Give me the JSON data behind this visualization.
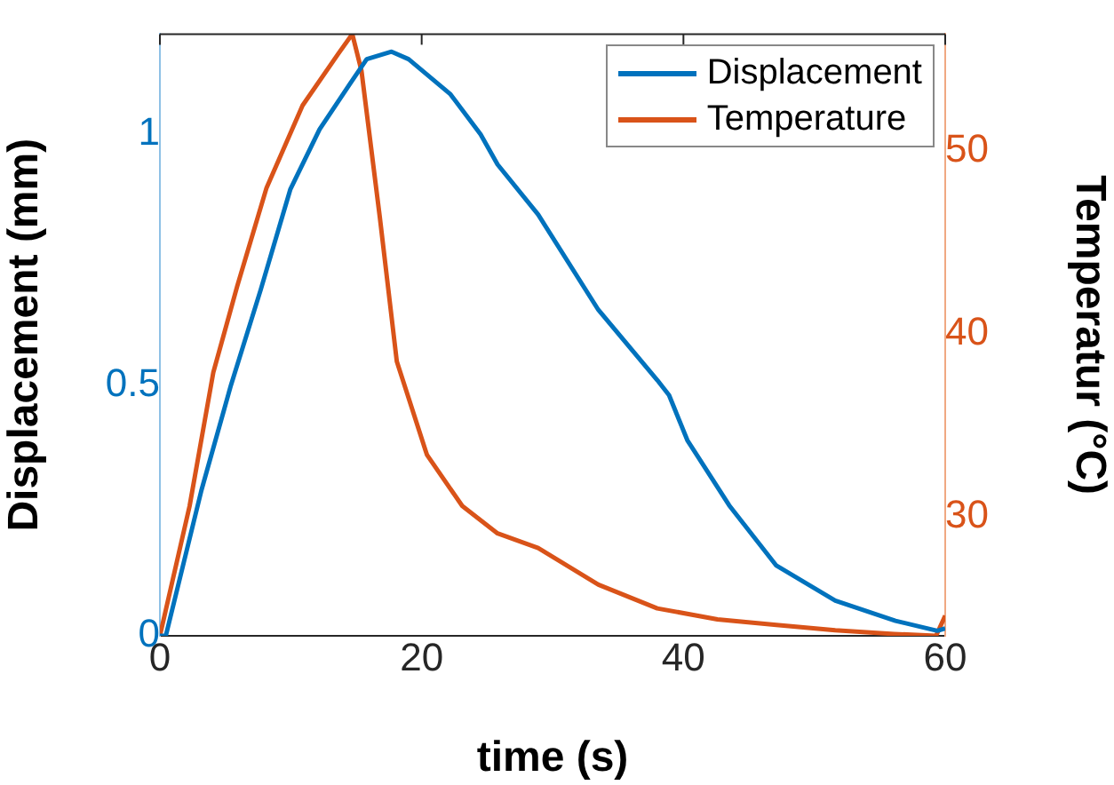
{
  "chart_data": {
    "type": "line",
    "xlabel": "time (s)",
    "ylabel": "Displacement (mm)",
    "y2label": "Temperatur (°C)",
    "xlim": [
      0,
      60
    ],
    "xticks": [
      0,
      20,
      40,
      60
    ],
    "ylim": [
      0,
      1.2
    ],
    "yticks": [
      0,
      0.5,
      1
    ],
    "y2lim": [
      23.5,
      56.4
    ],
    "y2ticks": [
      30,
      40,
      50
    ],
    "grid": false,
    "legend": "top right",
    "marker": "none",
    "line_style": "solid",
    "series": [
      {
        "name": "Displacement",
        "color": "#0072bd",
        "x": [
          0,
          0.45,
          3.17,
          5.43,
          7.7,
          9.96,
          12.2,
          14.5,
          15.8,
          17.7,
          19.0,
          22.2,
          24.5,
          25.8,
          28.9,
          33.5,
          38.0,
          38.9,
          40.3,
          43.5,
          47.1,
          51.6,
          56.2,
          59.4,
          60
        ],
        "values": [
          0,
          0,
          0.29,
          0.5,
          0.69,
          0.89,
          1.01,
          1.1,
          1.15,
          1.165,
          1.15,
          1.08,
          1.0,
          0.94,
          0.84,
          0.65,
          0.51,
          0.48,
          0.39,
          0.26,
          0.14,
          0.07,
          0.03,
          0.01,
          0.015
        ]
      },
      {
        "name": "Temperature",
        "color": "#d95319",
        "axis": "y2",
        "x": [
          0,
          2.27,
          4.08,
          5.9,
          8.15,
          10.9,
          13.6,
          14.7,
          15.4,
          16.8,
          18.1,
          20.4,
          23.1,
          25.8,
          28.9,
          33.5,
          38.0,
          42.6,
          47.1,
          51.6,
          56.1,
          59.3,
          60
        ],
        "values": [
          23.5,
          30.6,
          37.9,
          42.6,
          48.0,
          52.5,
          55.3,
          56.4,
          54.4,
          46.4,
          38.5,
          33.4,
          30.6,
          29.1,
          28.3,
          26.3,
          25.0,
          24.4,
          24.1,
          23.8,
          23.6,
          23.5,
          24.6
        ]
      }
    ]
  }
}
